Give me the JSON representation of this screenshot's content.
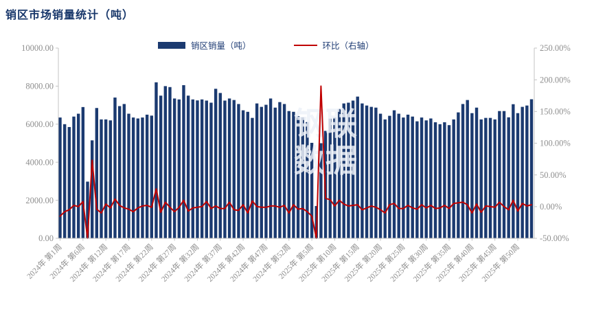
{
  "title": "销区市场销量统计（吨）",
  "legend": [
    {
      "label": "销区销量（吨）",
      "type": "bar",
      "color": "#1b3a70"
    },
    {
      "label": "环比（右轴）",
      "type": "line",
      "color": "#c00000"
    }
  ],
  "watermark": {
    "line1": "钢联",
    "line2": "数据"
  },
  "colors": {
    "bar": "#1b3a70",
    "line": "#c00000",
    "axis": "#c3c3c3",
    "tick_text": "#8f8f8f",
    "title_text": "#17366a"
  },
  "chart_data": {
    "type": "bar",
    "title": "销区市场销量统计（吨）",
    "legend_position": "top",
    "grid": false,
    "left_axis": {
      "label": "销区销量（吨）",
      "min": 0,
      "max": 10000,
      "step": 2000,
      "tick_labels": [
        "10000.00",
        "8000.00",
        "6000.00",
        "4000.00",
        "2000.00",
        "0.00"
      ]
    },
    "right_axis": {
      "label": "环比（右轴）",
      "min": -50,
      "max": 250,
      "step": 50,
      "tick_labels": [
        "250.00%",
        "200.00%",
        "150.00%",
        "100.00%",
        "50.00%",
        "0.00%",
        "-50.00%"
      ]
    },
    "x_tick_labels": [
      "2024年 第1周",
      "2024年 第6周",
      "2024年 第12周",
      "2024年 第17周",
      "2024年 第22周",
      "2024年 第27周",
      "2024年 第32周",
      "2024年 第37周",
      "2024年 第42周",
      "2024年 第47周",
      "2024年 第52周",
      "2025年 第5周",
      "2025年 第10周",
      "2025年 第15周",
      "2025年 第20周",
      "2025年 第25周",
      "2025年 第30周",
      "2025年 第35周",
      "2025年 第40周",
      "2025年 第45周",
      "2025年 第50周"
    ],
    "x_label_every": 5,
    "series": [
      {
        "name": "销区销量（吨）",
        "type": "bar",
        "axis": "left",
        "color": "#1b3a70",
        "values": [
          6350,
          6000,
          5850,
          6400,
          6550,
          6900,
          2980,
          5150,
          6850,
          6250,
          6250,
          6200,
          7400,
          6950,
          7060,
          6550,
          6350,
          6300,
          6350,
          6500,
          6450,
          8200,
          7500,
          8000,
          7950,
          7350,
          7300,
          8050,
          7500,
          7300,
          7250,
          7300,
          7240,
          7130,
          7860,
          7640,
          7240,
          7350,
          7270,
          7060,
          6730,
          6650,
          6330,
          7090,
          6910,
          7020,
          7350,
          6870,
          7160,
          7060,
          6690,
          6650,
          6420,
          6360,
          6110,
          5020,
          1700,
          5000,
          5650,
          6290,
          6350,
          6800,
          7090,
          7130,
          7240,
          7450,
          7090,
          6980,
          6910,
          6870,
          6550,
          6250,
          6440,
          6730,
          6550,
          6350,
          6500,
          6400,
          6150,
          6350,
          6200,
          6300,
          6100,
          6000,
          6100,
          5950,
          6250,
          6620,
          7060,
          7270,
          6580,
          6870,
          6250,
          6330,
          6330,
          6250,
          6690,
          6690,
          6360,
          7050,
          6580,
          6910,
          6980,
          7310
        ]
      },
      {
        "name": "环比（右轴）",
        "type": "line",
        "axis": "right",
        "color": "#c00000",
        "values": [
          -15,
          -8,
          -5,
          2,
          0,
          8,
          -50,
          73,
          -4,
          -10,
          4,
          -2,
          12,
          2,
          -2,
          -4,
          -8,
          -2,
          1,
          2,
          -1,
          28,
          -9,
          7,
          -1,
          -8,
          -1,
          10,
          -7,
          -2,
          -1,
          0,
          8,
          -3,
          1,
          -3,
          -3,
          7,
          -5,
          -6,
          3,
          -10,
          9,
          0,
          -1,
          -1,
          1,
          1,
          -1,
          2,
          -10,
          3,
          -4,
          -3,
          -8,
          -15,
          -50,
          190,
          13,
          11,
          1,
          10,
          4,
          1,
          2,
          3,
          -5,
          -2,
          1,
          -1,
          -5,
          -10,
          3,
          5,
          -3,
          -3,
          2,
          -2,
          -4,
          3,
          -2,
          2,
          -3,
          -2,
          2,
          -3,
          5,
          6,
          7,
          3,
          -10,
          4,
          -9,
          1,
          0,
          -1,
          7,
          0,
          -5,
          10,
          -7,
          5,
          1,
          3
        ]
      }
    ]
  }
}
